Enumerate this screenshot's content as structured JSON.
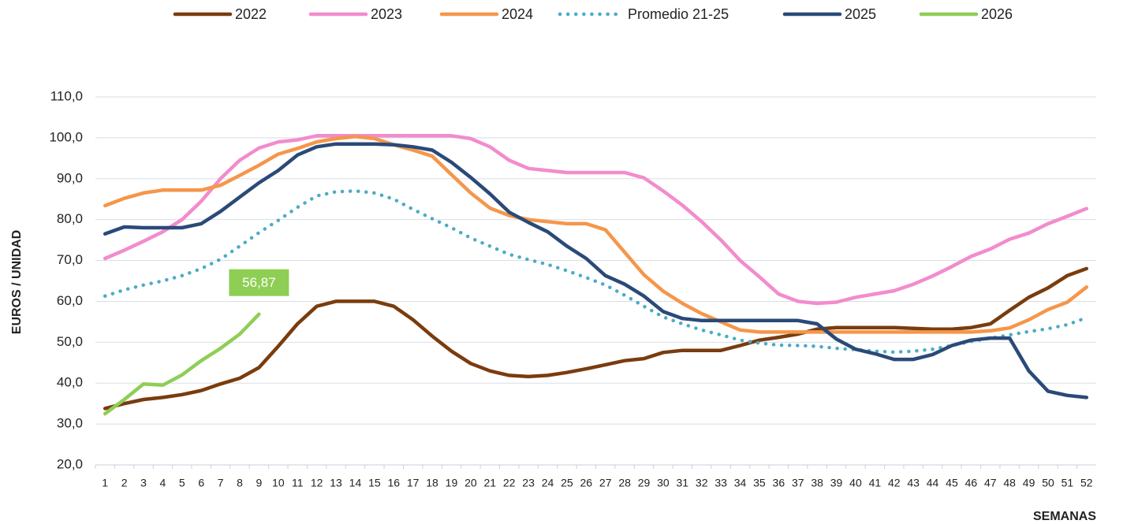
{
  "chart_data": {
    "type": "line",
    "x_label": "SEMANAS",
    "y_label": "EUROS / UNIDAD",
    "categories": [
      "1",
      "2",
      "3",
      "4",
      "5",
      "6",
      "7",
      "8",
      "9",
      "10",
      "11",
      "12",
      "13",
      "14",
      "15",
      "16",
      "17",
      "18",
      "19",
      "20",
      "21",
      "22",
      "23",
      "24",
      "25",
      "26",
      "27",
      "28",
      "29",
      "30",
      "31",
      "32",
      "33",
      "34",
      "35",
      "36",
      "37",
      "38",
      "39",
      "40",
      "41",
      "42",
      "43",
      "44",
      "45",
      "46",
      "47",
      "48",
      "49",
      "50",
      "51",
      "52"
    ],
    "ylim": [
      20,
      110
    ],
    "yticks": [
      {
        "value": 20,
        "label": "20,0"
      },
      {
        "value": 30,
        "label": "30,0"
      },
      {
        "value": 40,
        "label": "40,0"
      },
      {
        "value": 50,
        "label": "50,0"
      },
      {
        "value": 60,
        "label": "60,0"
      },
      {
        "value": 70,
        "label": "70,0"
      },
      {
        "value": 80,
        "label": "80,0"
      },
      {
        "value": 90,
        "label": "90,0"
      },
      {
        "value": 100,
        "label": "100,0"
      },
      {
        "value": 110,
        "label": "110,0"
      }
    ],
    "grid": true,
    "legend": "top",
    "series": [
      {
        "name": "2022",
        "color": "#7a3c0e",
        "values": [
          33.8,
          35,
          36,
          36.5,
          37.2,
          38.2,
          39.8,
          41.2,
          43.8,
          49,
          54.5,
          58.8,
          60,
          60,
          60,
          58.8,
          55.5,
          51.5,
          47.8,
          44.8,
          43,
          41.9,
          41.6,
          41.9,
          42.6,
          43.5,
          44.5,
          45.5,
          46,
          47.5,
          48,
          48,
          48,
          49.2,
          50.5,
          51.2,
          52,
          53.2,
          53.6,
          53.6,
          53.6,
          53.6,
          53.4,
          53.2,
          53.2,
          53.6,
          54.5,
          57.8,
          61,
          63.3,
          66.3,
          68
        ]
      },
      {
        "name": "2023",
        "color": "#f28ccd",
        "values": [
          70.5,
          72.5,
          74.7,
          77,
          80,
          84.5,
          90,
          94.5,
          97.5,
          99,
          99.5,
          100.5,
          100.5,
          100.5,
          100.5,
          100.5,
          100.5,
          100.5,
          100.5,
          99.8,
          97.8,
          94.5,
          92.5,
          92,
          91.5,
          91.5,
          91.5,
          91.5,
          90.2,
          87,
          83.5,
          79.5,
          75,
          70,
          66,
          61.8,
          60,
          59.5,
          59.8,
          61,
          61.8,
          62.6,
          64.2,
          66.2,
          68.5,
          71,
          72.8,
          75.2,
          76.7,
          79,
          80.8,
          82.7
        ]
      },
      {
        "name": "2024",
        "color": "#f5964a",
        "values": [
          83.4,
          85.2,
          86.5,
          87.2,
          87.2,
          87.2,
          88.4,
          90.8,
          93.3,
          96,
          97.4,
          99,
          99.8,
          100.3,
          99.8,
          98.3,
          97,
          95.5,
          91,
          86.5,
          82.8,
          81,
          80,
          79.5,
          79,
          79,
          77.5,
          72,
          66.5,
          62.5,
          59.5,
          57,
          55,
          53,
          52.5,
          52.5,
          52.5,
          52.5,
          52.5,
          52.5,
          52.5,
          52.5,
          52.5,
          52.5,
          52.5,
          52.5,
          52.8,
          53.5,
          55.5,
          58,
          59.8,
          63.5
        ]
      },
      {
        "name": "Promedio 21-25",
        "color": "#4bacc6",
        "line_style": "dotted",
        "values": [
          61.3,
          62.8,
          64,
          65,
          66.3,
          68,
          70.3,
          73.5,
          76.8,
          79.8,
          83,
          85.8,
          86.8,
          87,
          86.5,
          85,
          82.5,
          80.2,
          78,
          75.5,
          73.5,
          71.5,
          70.2,
          69,
          67.5,
          65.8,
          64,
          61.5,
          58.8,
          56.2,
          54.5,
          53,
          51.8,
          50.5,
          49.8,
          49.3,
          49.2,
          49,
          48.5,
          48.2,
          47.8,
          47.6,
          47.8,
          48.3,
          49.2,
          50.2,
          51,
          51.8,
          52.6,
          53.3,
          54.3,
          56
        ]
      },
      {
        "name": "2025",
        "color": "#2a4a78",
        "values": [
          76.5,
          78.2,
          78,
          78,
          78,
          79,
          82,
          85.5,
          89,
          92,
          95.8,
          97.8,
          98.5,
          98.5,
          98.5,
          98.3,
          97.8,
          97,
          94,
          90.3,
          86.3,
          81.8,
          79.3,
          77,
          73.5,
          70.5,
          66.3,
          64.2,
          61.3,
          57.5,
          55.8,
          55.3,
          55.3,
          55.3,
          55.3,
          55.3,
          55.3,
          54.5,
          50.8,
          48.3,
          47.2,
          45.8,
          45.8,
          47,
          49.2,
          50.5,
          51,
          51,
          43,
          38,
          37,
          36.5
        ]
      },
      {
        "name": "2026",
        "color": "#8fce55",
        "values": [
          32.5,
          36,
          39.8,
          39.5,
          42,
          45.5,
          48.5,
          52,
          56.87,
          null,
          null,
          null,
          null,
          null,
          null,
          null,
          null,
          null,
          null,
          null,
          null,
          null,
          null,
          null,
          null,
          null,
          null,
          null,
          null,
          null,
          null,
          null,
          null,
          null,
          null,
          null,
          null,
          null,
          null,
          null,
          null,
          null,
          null,
          null,
          null,
          null,
          null,
          null,
          null,
          null,
          null,
          null
        ],
        "value_labels": [
          null,
          null,
          null,
          null,
          null,
          null,
          null,
          null,
          "56,87",
          null,
          null,
          null,
          null,
          null,
          null,
          null,
          null,
          null,
          null,
          null,
          null,
          null,
          null,
          null,
          null,
          null,
          null,
          null,
          null,
          null,
          null,
          null,
          null,
          null,
          null,
          null,
          null,
          null,
          null,
          null,
          null,
          null,
          null,
          null,
          null,
          null,
          null,
          null,
          null,
          null,
          null,
          null
        ]
      }
    ]
  }
}
